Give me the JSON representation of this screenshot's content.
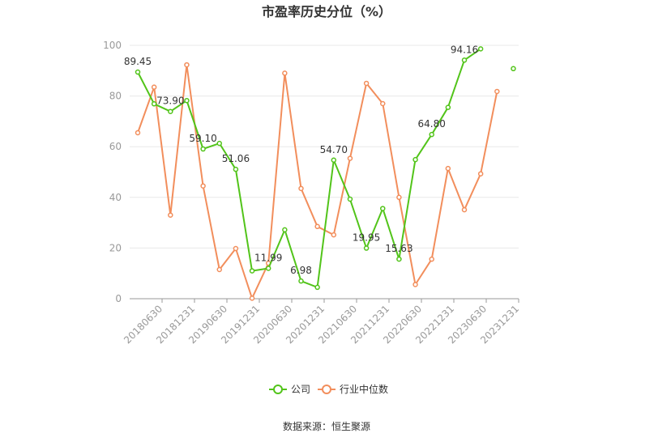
{
  "chart_data": {
    "type": "line",
    "title": "市盈率历史分位（%）",
    "source": "数据来源：恒生聚源",
    "ylim": [
      0,
      100
    ],
    "yticks": [
      0,
      20,
      40,
      60,
      80,
      100
    ],
    "xtick_labels": [
      "20180630",
      "20181231",
      "20190630",
      "20191231",
      "20200630",
      "20201231",
      "20210630",
      "20211231",
      "20220630",
      "20221231",
      "20230630",
      "20231231"
    ],
    "grid": true,
    "legend_position": "bottom",
    "series": [
      {
        "name": "公司",
        "color": "#52c41a",
        "values": [
          89.45,
          76.9,
          73.9,
          78.2,
          59.1,
          61.3,
          51.06,
          11.0,
          11.99,
          27.2,
          6.98,
          4.5,
          54.7,
          39.3,
          19.95,
          35.6,
          15.63,
          54.9,
          64.8,
          75.5,
          94.16,
          98.6,
          null,
          90.8
        ],
        "labels": {
          "0": "89.45",
          "2": "73.90",
          "4": "59.10",
          "6": "51.06",
          "8": "11.99",
          "10": "6.98",
          "12": "54.70",
          "14": "19.95",
          "16": "15.63",
          "18": "64.80",
          "20": "94.16"
        }
      },
      {
        "name": "行业中位数",
        "color": "#f28e5c",
        "values": [
          65.5,
          83.5,
          33.0,
          92.3,
          44.5,
          11.5,
          19.8,
          0.2,
          14.0,
          89.0,
          43.5,
          28.5,
          25.2,
          55.4,
          85.0,
          77.0,
          40.0,
          5.6,
          15.6,
          51.4,
          35.1,
          49.3,
          81.8,
          null
        ]
      }
    ]
  }
}
